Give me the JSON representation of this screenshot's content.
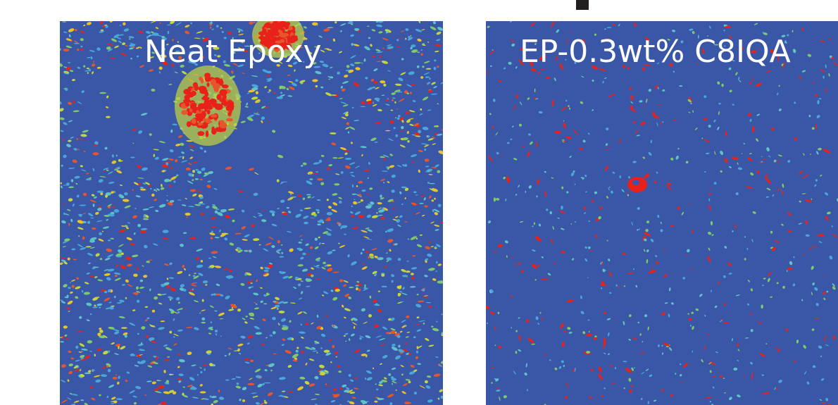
{
  "panels": [
    {
      "label": "Neat Epoxy"
    },
    {
      "label": "EP-0.3wt% C8IQA"
    }
  ]
}
